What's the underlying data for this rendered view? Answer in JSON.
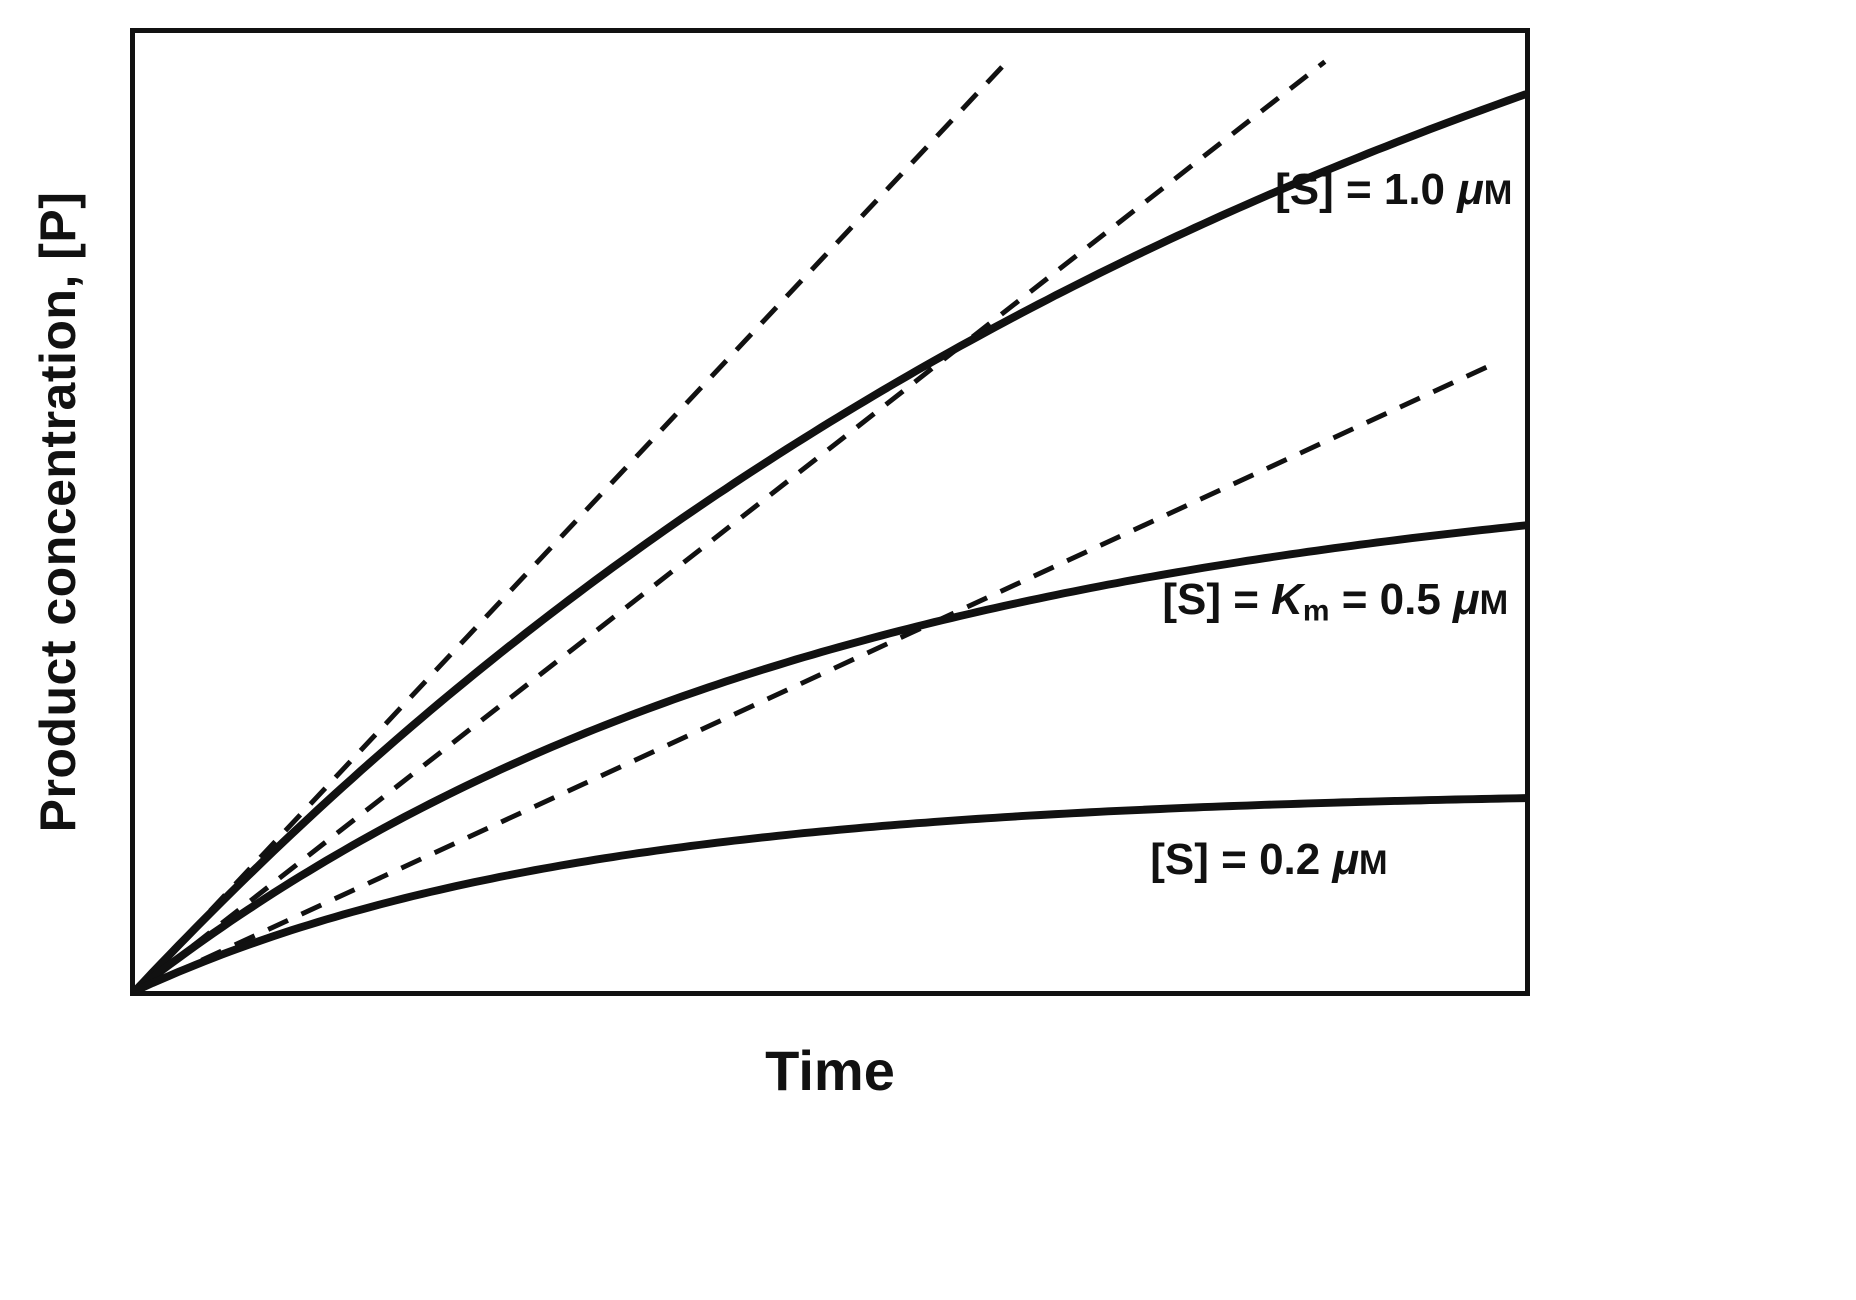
{
  "chart_data": {
    "type": "line",
    "title": "",
    "xlabel": "Time",
    "ylabel": "Product concentration, [P]",
    "x_range": [
      0,
      1
    ],
    "y_range": [
      0,
      1
    ],
    "grid": false,
    "ticks": false,
    "legend_position": "inline-annotations",
    "line_color": "#111111",
    "series": [
      {
        "name": "[S] = 1.0 uM",
        "style": "solid",
        "model": "saturating_exponential",
        "pmax": 1.4,
        "k": 1.104,
        "initial_rate": 1.546,
        "x": [
          0,
          0.1,
          0.2,
          0.3,
          0.4,
          0.5,
          0.6,
          0.7,
          0.8,
          0.9,
          1.0
        ],
        "y": [
          0,
          0.146,
          0.277,
          0.395,
          0.5,
          0.594,
          0.678,
          0.754,
          0.821,
          0.882,
          0.936
        ]
      },
      {
        "name": "[S] = Km = 0.5 uM",
        "style": "solid",
        "model": "saturating_exponential",
        "pmax": 0.56,
        "k": 2.023,
        "initial_rate": 1.133,
        "x": [
          0,
          0.1,
          0.2,
          0.3,
          0.4,
          0.5,
          0.6,
          0.7,
          0.8,
          0.9,
          1.0
        ],
        "y": [
          0,
          0.103,
          0.186,
          0.255,
          0.311,
          0.356,
          0.394,
          0.424,
          0.449,
          0.469,
          0.486
        ]
      },
      {
        "name": "[S] = 0.2 uM",
        "style": "solid",
        "model": "saturating_exponential",
        "pmax": 0.21,
        "k": 3.19,
        "initial_rate": 0.67,
        "x": [
          0,
          0.1,
          0.2,
          0.3,
          0.4,
          0.5,
          0.6,
          0.7,
          0.8,
          0.9,
          1.0
        ],
        "y": [
          0,
          0.057,
          0.099,
          0.129,
          0.151,
          0.167,
          0.179,
          0.188,
          0.194,
          0.198,
          0.201
        ]
      }
    ],
    "tangents": [
      {
        "for_series": "[S] = 1.0 uM",
        "style": "dashed",
        "x0": 0,
        "y0": 0,
        "x1": 0.624,
        "y1": 0.965
      },
      {
        "for_series": "[S] = Km = 0.5 uM",
        "style": "dashed",
        "x0": 0,
        "y0": 0,
        "x1": 0.856,
        "y1": 0.97
      },
      {
        "for_series": "[S] = 0.2 uM",
        "style": "dashed",
        "x0": 0,
        "y0": 0,
        "x1": 0.981,
        "y1": 0.657
      }
    ],
    "annotations": [
      {
        "id": "label-s-1-0",
        "text": "[S] = 1.0 μM",
        "x": 0.991,
        "y": 0.838,
        "align": "right",
        "parts": [
          {
            "t": "[S] = 1.0 ",
            "cls": ""
          },
          {
            "t": "μ",
            "cls": "mu"
          },
          {
            "t": "M",
            "cls": "sc"
          }
        ]
      },
      {
        "id": "label-s-km-0-5",
        "text": "[S] = Km = 0.5 μM",
        "x": 0.988,
        "y": 0.415,
        "align": "right",
        "parts": [
          {
            "t": "[S] = ",
            "cls": ""
          },
          {
            "t": "K",
            "cls": "itk"
          },
          {
            "t": "m",
            "cls": "sub"
          },
          {
            "t": " = 0.5 ",
            "cls": ""
          },
          {
            "t": "μ",
            "cls": "mu"
          },
          {
            "t": "M",
            "cls": "sc"
          }
        ]
      },
      {
        "id": "label-s-0-2",
        "text": "[S] = 0.2 μM",
        "x": 0.902,
        "y": 0.147,
        "align": "right",
        "parts": [
          {
            "t": "[S] = 0.2 ",
            "cls": ""
          },
          {
            "t": "μ",
            "cls": "mu"
          },
          {
            "t": "M",
            "cls": "sc"
          }
        ]
      }
    ]
  }
}
